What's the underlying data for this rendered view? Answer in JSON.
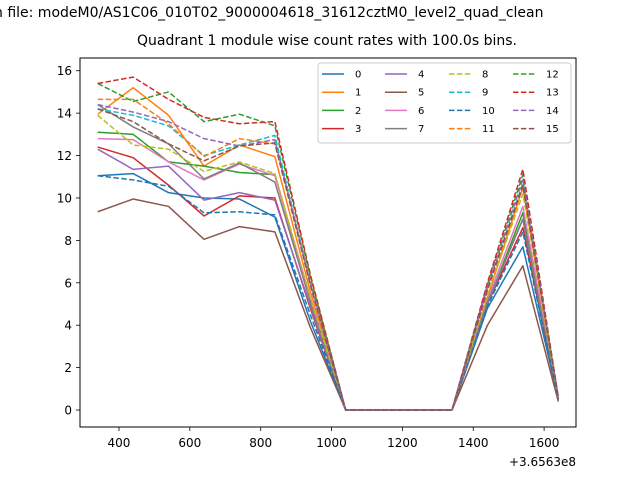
{
  "figure": {
    "suptitle": "n file: modeM0/AS1C06_010T02_9000004618_31612cztM0_level2_quad_clean",
    "title": "Quadrant 1 module wise count rates with 100.0s bins.",
    "offset_label": "+3.6563e8"
  },
  "chart_data": {
    "type": "line",
    "title": "Quadrant 1 module wise count rates with 100.0s bins.",
    "xlabel": "",
    "ylabel": "",
    "x_offset_text": "+3.6563e8",
    "xlim": [
      290,
      1690
    ],
    "ylim": [
      -0.8,
      16.6
    ],
    "xticks": [
      400,
      600,
      800,
      1000,
      1200,
      1400,
      1600
    ],
    "yticks": [
      0,
      2,
      4,
      6,
      8,
      10,
      12,
      14,
      16
    ],
    "grid": false,
    "legend_position": "top-right",
    "legend_columns": 4,
    "x": [
      340,
      440,
      540,
      640,
      740,
      840,
      940,
      1040,
      1140,
      1240,
      1340,
      1440,
      1540,
      1640
    ],
    "series": [
      {
        "name": "0",
        "color": "#1f77b4",
        "dash": "solid",
        "values": [
          11.05,
          11.15,
          10.25,
          10.0,
          9.95,
          9.1,
          4.2,
          0,
          0,
          0,
          0,
          4.8,
          7.7,
          0.55
        ]
      },
      {
        "name": "1",
        "color": "#ff7f0e",
        "dash": "solid",
        "values": [
          13.95,
          15.2,
          13.9,
          11.5,
          12.5,
          11.95,
          5.6,
          0,
          0,
          0,
          0,
          5.3,
          10.5,
          0.6
        ]
      },
      {
        "name": "2",
        "color": "#2ca02c",
        "dash": "solid",
        "values": [
          13.1,
          13.0,
          11.7,
          11.5,
          11.2,
          11.1,
          5.2,
          0,
          0,
          0,
          0,
          5.0,
          9.3,
          0.5
        ]
      },
      {
        "name": "3",
        "color": "#d62728",
        "dash": "solid",
        "values": [
          12.4,
          11.9,
          10.6,
          9.15,
          10.1,
          10.0,
          4.8,
          0,
          0,
          0,
          0,
          5.0,
          8.6,
          0.5
        ]
      },
      {
        "name": "4",
        "color": "#9467bd",
        "dash": "solid",
        "values": [
          12.3,
          11.35,
          11.5,
          9.9,
          10.25,
          9.9,
          4.9,
          0,
          0,
          0,
          0,
          5.0,
          9.0,
          0.5
        ]
      },
      {
        "name": "5",
        "color": "#8c564b",
        "dash": "solid",
        "values": [
          9.35,
          9.95,
          9.6,
          8.05,
          8.65,
          8.4,
          3.9,
          0,
          0,
          0,
          0,
          4.0,
          6.8,
          0.4
        ]
      },
      {
        "name": "6",
        "color": "#e377c2",
        "dash": "solid",
        "values": [
          12.8,
          12.75,
          11.7,
          10.85,
          11.6,
          11.05,
          5.3,
          0,
          0,
          0,
          0,
          5.2,
          9.6,
          0.5
        ]
      },
      {
        "name": "7",
        "color": "#7f7f7f",
        "dash": "solid",
        "values": [
          14.4,
          13.35,
          12.55,
          10.9,
          11.65,
          10.75,
          5.1,
          0,
          0,
          0,
          0,
          5.1,
          9.0,
          0.5
        ]
      },
      {
        "name": "8",
        "color": "#bcbd22",
        "dash": "dashed",
        "values": [
          13.9,
          12.5,
          12.3,
          11.25,
          11.7,
          11.15,
          5.3,
          0,
          0,
          0,
          0,
          5.4,
          10.2,
          0.5
        ]
      },
      {
        "name": "9",
        "color": "#17becf",
        "dash": "dashed",
        "values": [
          14.2,
          13.9,
          13.4,
          12.0,
          12.5,
          12.95,
          6.0,
          0,
          0,
          0,
          0,
          5.7,
          10.7,
          0.6
        ]
      },
      {
        "name": "10",
        "color": "#1f77b4",
        "dash": "dashed",
        "values": [
          11.05,
          10.85,
          10.55,
          9.3,
          9.35,
          9.2,
          4.5,
          0,
          0,
          0,
          0,
          4.9,
          8.4,
          0.5
        ]
      },
      {
        "name": "11",
        "color": "#ff7f0e",
        "dash": "dashed",
        "values": [
          14.65,
          14.65,
          13.5,
          11.95,
          12.8,
          12.55,
          6.0,
          0,
          0,
          0,
          0,
          5.6,
          10.5,
          0.6
        ]
      },
      {
        "name": "12",
        "color": "#2ca02c",
        "dash": "dashed",
        "values": [
          15.4,
          14.55,
          15.0,
          13.6,
          13.95,
          13.4,
          6.3,
          0,
          0,
          0,
          0,
          5.9,
          11.1,
          0.6
        ]
      },
      {
        "name": "13",
        "color": "#d62728",
        "dash": "dashed",
        "values": [
          15.4,
          15.7,
          14.65,
          13.8,
          13.5,
          13.6,
          6.4,
          0,
          0,
          0,
          0,
          6.0,
          11.35,
          0.6
        ]
      },
      {
        "name": "14",
        "color": "#9467bd",
        "dash": "dashed",
        "values": [
          14.4,
          14.05,
          13.6,
          12.8,
          12.45,
          12.75,
          6.0,
          0,
          0,
          0,
          0,
          5.8,
          10.9,
          0.6
        ]
      },
      {
        "name": "15",
        "color": "#8c564b",
        "dash": "dashed",
        "values": [
          14.2,
          13.6,
          12.55,
          11.75,
          12.45,
          12.6,
          5.9,
          0,
          0,
          0,
          0,
          5.7,
          10.6,
          0.6
        ]
      }
    ]
  }
}
